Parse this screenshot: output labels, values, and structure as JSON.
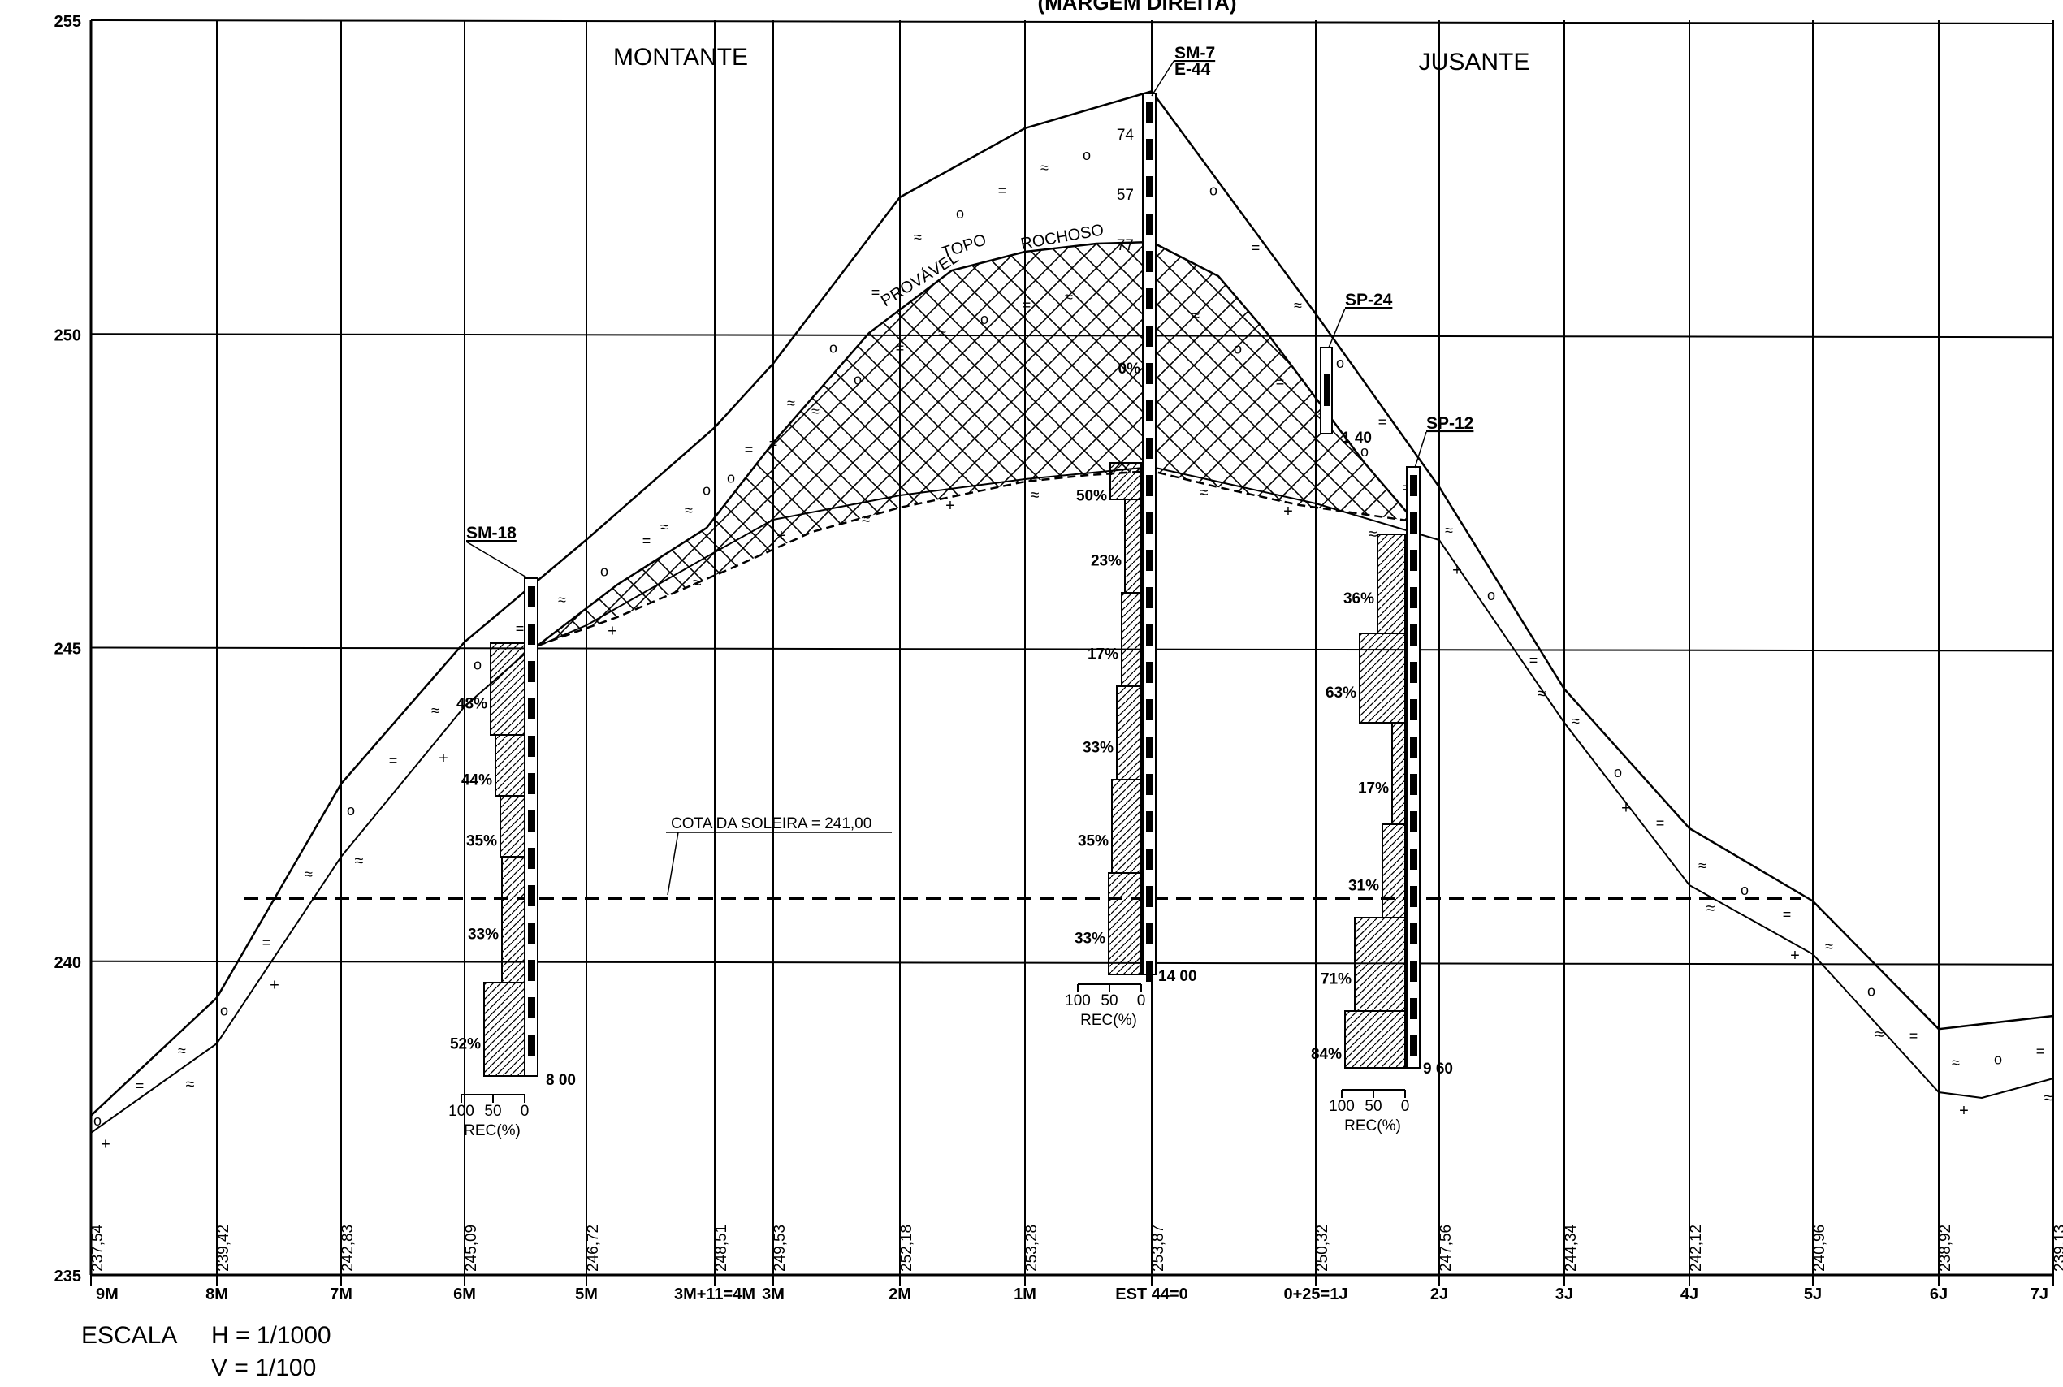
{
  "header": {
    "title_partial": "(MARGEM DIREITA)"
  },
  "regions": {
    "left": "MONTANTE",
    "right": "JUSANTE"
  },
  "top_rock_label": [
    "PROVÁVEL",
    "TOPO",
    "ROCHOSO"
  ],
  "sill_label": "COTA DA SOLEIRA = 241,00",
  "elevation_axis": [
    {
      "value": 255,
      "label": "255"
    },
    {
      "value": 250,
      "label": "250"
    },
    {
      "value": 245,
      "label": "245"
    },
    {
      "value": 240,
      "label": "240"
    },
    {
      "value": 235,
      "label": "235"
    }
  ],
  "stations": [
    {
      "label": "9M",
      "ground": "237,54",
      "g": 237.54
    },
    {
      "label": "8M",
      "ground": "239,42",
      "g": 239.42
    },
    {
      "label": "7M",
      "ground": "242,83",
      "g": 242.83
    },
    {
      "label": "6M",
      "ground": "245,09",
      "g": 245.09
    },
    {
      "label": "5M",
      "ground": "246,72",
      "g": 246.72
    },
    {
      "label": "3M+11=4M",
      "ground": "248,51",
      "g": 248.51
    },
    {
      "label": "3M",
      "ground": "249,53",
      "g": 249.53
    },
    {
      "label": "2M",
      "ground": "252,18",
      "g": 252.18
    },
    {
      "label": "1M",
      "ground": "253,28",
      "g": 253.28
    },
    {
      "label": "EST 44=0",
      "ground": "253,87",
      "g": 253.87
    },
    {
      "label": "0+25=1J",
      "ground": "250,32",
      "g": 250.32
    },
    {
      "label": "2J",
      "ground": "247,56",
      "g": 247.56
    },
    {
      "label": "3J",
      "ground": "244,34",
      "g": 244.34
    },
    {
      "label": "4J",
      "ground": "242,12",
      "g": 242.12
    },
    {
      "label": "5J",
      "ground": "240,96",
      "g": 240.96
    },
    {
      "label": "6J",
      "ground": "238,92",
      "g": 238.92
    },
    {
      "label": "7J",
      "ground": "239,13",
      "g": 239.13
    }
  ],
  "boreholes": [
    {
      "name": "SM-18",
      "depth_label": "8 00",
      "recoveries": [
        "48%",
        "44%",
        "35%",
        "33%",
        "52%"
      ],
      "rec_axis": [
        "100",
        "50",
        "0"
      ],
      "rec_title": "REC(%)"
    },
    {
      "name": "SM-7",
      "alt_name": "E-44",
      "depth_label": "14 00",
      "spt_values": [
        "74",
        "57",
        "77"
      ],
      "recoveries": [
        "0%",
        "50%",
        "23%",
        "17%",
        "33%",
        "35%",
        "33%"
      ],
      "rec_axis": [
        "100",
        "50",
        "0"
      ],
      "rec_title": "REC(%)"
    },
    {
      "name": "SP-24",
      "depth_label": "1 40"
    },
    {
      "name": "SP-12",
      "depth_label": "9 60",
      "recoveries": [
        "36%",
        "63%",
        "17%",
        "31%",
        "71%",
        "84%"
      ],
      "rec_axis": [
        "100",
        "50",
        "0"
      ],
      "rec_title": "REC(%)"
    }
  ],
  "scale": {
    "label": "ESCALA",
    "h": "H = 1/1000",
    "v": "V = 1/100"
  }
}
